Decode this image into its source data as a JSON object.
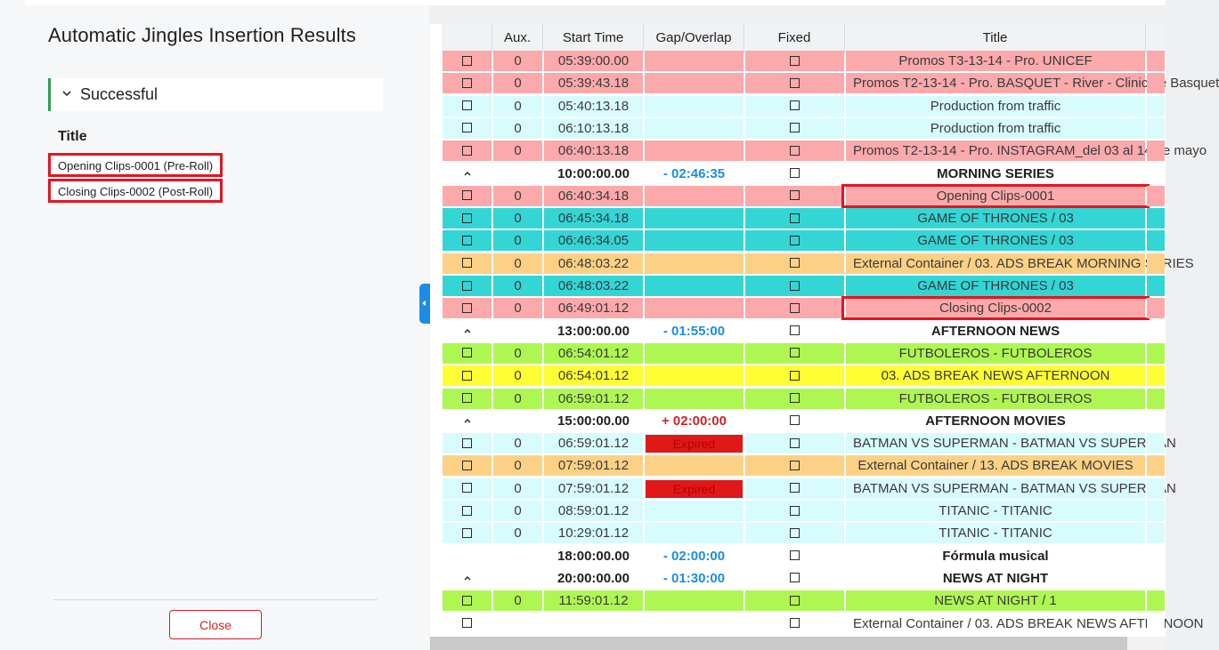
{
  "dialog": {
    "title": "Automatic Jingles Insertion Results",
    "section_label": "Successful",
    "list_header": "Title",
    "results": [
      "Opening Clips-0001 (Pre-Roll)",
      "Closing Clips-0002 (Post-Roll)"
    ],
    "close_label": "Close"
  },
  "grid": {
    "columns": [
      "",
      "Aux.",
      "Start Time",
      "Gap/Overlap",
      "Fixed",
      "Title"
    ],
    "colors": {
      "pink": "#fca9ac",
      "cyan": "#d8fcfd",
      "teal": "#33d5d5",
      "orange": "#fdd185",
      "green": "#aef753",
      "yellow": "#fefe35",
      "white": "#ffffff",
      "expired": "#e01818",
      "gap_negative": "#1b8de6",
      "gap_positive": "#d0222a"
    },
    "rows": [
      {
        "type": "item",
        "color": "pink",
        "aux": "0",
        "start": "05:39:00.00",
        "gap": "",
        "title": "Promos T3-13-14 - Pro. UNICEF"
      },
      {
        "type": "item",
        "color": "pink",
        "aux": "0",
        "start": "05:39:43.18",
        "gap": "",
        "title": "Promos T2-13-14 - Pro. BASQUET - River - Clinic de Basquet"
      },
      {
        "type": "item",
        "color": "cyan",
        "aux": "0",
        "start": "05:40:13.18",
        "gap": "",
        "title": "Production from traffic"
      },
      {
        "type": "item",
        "color": "cyan",
        "aux": "0",
        "start": "06:10:13.18",
        "gap": "",
        "title": "Production from traffic"
      },
      {
        "type": "item",
        "color": "pink",
        "aux": "0",
        "start": "06:40:13.18",
        "gap": "",
        "title": "Promos T2-13-14 - Pro. INSTAGRAM_del 03 al 14 de mayo"
      },
      {
        "type": "group",
        "color": "white",
        "start": "10:00:00.00",
        "gap": "- 02:46:35",
        "gap_sign": "neg",
        "title": "MORNING SERIES"
      },
      {
        "type": "item",
        "color": "pink",
        "aux": "0",
        "start": "06:40:34.18",
        "gap": "",
        "title": "Opening Clips-0001",
        "highlight": true
      },
      {
        "type": "item",
        "color": "teal",
        "aux": "0",
        "start": "06:45:34.18",
        "gap": "",
        "title": "GAME OF THRONES / 03"
      },
      {
        "type": "item",
        "color": "teal",
        "aux": "0",
        "start": "06:46:34.05",
        "gap": "",
        "title": "GAME OF THRONES / 03"
      },
      {
        "type": "item",
        "color": "orange",
        "aux": "0",
        "start": "06:48:03.22",
        "gap": "",
        "title": "External Container / 03. ADS BREAK MORNING SERIES"
      },
      {
        "type": "item",
        "color": "teal",
        "aux": "0",
        "start": "06:48:03.22",
        "gap": "",
        "title": "GAME OF THRONES / 03"
      },
      {
        "type": "item",
        "color": "pink",
        "aux": "0",
        "start": "06:49:01.12",
        "gap": "",
        "title": "Closing Clips-0002",
        "highlight": true
      },
      {
        "type": "group",
        "color": "white",
        "start": "13:00:00.00",
        "gap": "- 01:55:00",
        "gap_sign": "neg",
        "title": "AFTERNOON NEWS"
      },
      {
        "type": "item",
        "color": "green",
        "aux": "0",
        "start": "06:54:01.12",
        "gap": "",
        "title": "FUTBOLEROS - FUTBOLEROS"
      },
      {
        "type": "item",
        "color": "yellow",
        "aux": "0",
        "start": "06:54:01.12",
        "gap": "",
        "title": "03. ADS BREAK NEWS AFTERNOON"
      },
      {
        "type": "item",
        "color": "green",
        "aux": "0",
        "start": "06:59:01.12",
        "gap": "",
        "title": "FUTBOLEROS - FUTBOLEROS"
      },
      {
        "type": "group",
        "color": "white",
        "start": "15:00:00.00",
        "gap": "+ 02:00:00",
        "gap_sign": "pos",
        "title": "AFTERNOON MOVIES"
      },
      {
        "type": "item",
        "color": "cyan",
        "aux": "0",
        "start": "06:59:01.12",
        "gap": "Expired",
        "title": "BATMAN VS SUPERMAN - BATMAN VS SUPERMAN"
      },
      {
        "type": "item",
        "color": "orange",
        "aux": "0",
        "start": "07:59:01.12",
        "gap": "",
        "title": "External Container / 13. ADS BREAK MOVIES"
      },
      {
        "type": "item",
        "color": "cyan",
        "aux": "0",
        "start": "07:59:01.12",
        "gap": "Expired",
        "title": "BATMAN VS SUPERMAN - BATMAN VS SUPERMAN"
      },
      {
        "type": "item",
        "color": "cyan",
        "aux": "0",
        "start": "08:59:01.12",
        "gap": "",
        "title": "TITANIC - TITANIC"
      },
      {
        "type": "item",
        "color": "cyan",
        "aux": "0",
        "start": "10:29:01.12",
        "gap": "",
        "title": "TITANIC - TITANIC"
      },
      {
        "type": "group",
        "color": "white",
        "start": "18:00:00.00",
        "gap": "- 02:00:00",
        "gap_sign": "neg",
        "title": "Fórmula musical",
        "nocaret": true
      },
      {
        "type": "group",
        "color": "white",
        "start": "20:00:00.00",
        "gap": "- 01:30:00",
        "gap_sign": "neg",
        "title": "NEWS AT NIGHT"
      },
      {
        "type": "item",
        "color": "green",
        "aux": "0",
        "start": "11:59:01.12",
        "gap": "",
        "title": "NEWS AT NIGHT / 1"
      },
      {
        "type": "item",
        "color": "white",
        "aux": "",
        "start": "",
        "gap": "",
        "title": "External Container / 03. ADS BREAK NEWS AFTERNOON"
      }
    ]
  }
}
